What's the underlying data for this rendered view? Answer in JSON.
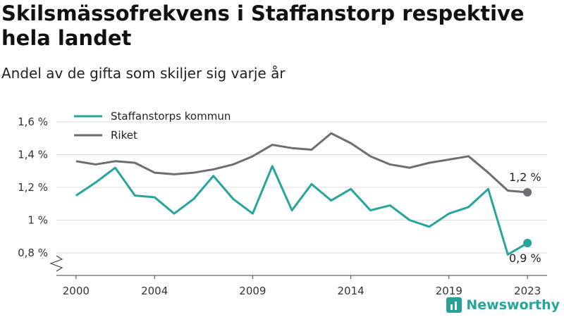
{
  "title": "Skilsmässofrekvens i Staffanstorp respektive hela landet",
  "subtitle": "Andel av de gifta som skiljer sig varje år",
  "brand": "Newsworthy",
  "colors": {
    "staffanstorp": "#26a69a",
    "riket": "#6d6d73",
    "grid": "#dddddd",
    "axis": "#444444"
  },
  "chart_data": {
    "type": "line",
    "title": "Skilsmässofrekvens i Staffanstorp respektive hela landet",
    "subtitle": "Andel av de gifta som skiljer sig varje år",
    "x_ticks": [
      2000,
      2004,
      2009,
      2014,
      2019,
      2023
    ],
    "y_ticks": [
      {
        "value": 0.8,
        "label": "0,8 %"
      },
      {
        "value": 1.0,
        "label": "1 %"
      },
      {
        "value": 1.2,
        "label": "1,2 %"
      },
      {
        "value": 1.4,
        "label": "1,4 %"
      },
      {
        "value": 1.6,
        "label": "1,6 %"
      }
    ],
    "ylim": [
      0.8,
      1.6
    ],
    "grid": true,
    "legend_position": "top-left",
    "x": [
      2000,
      2001,
      2002,
      2003,
      2004,
      2005,
      2006,
      2007,
      2008,
      2009,
      2010,
      2011,
      2012,
      2013,
      2014,
      2015,
      2016,
      2017,
      2018,
      2019,
      2020,
      2021,
      2022,
      2023
    ],
    "series": [
      {
        "name": "Staffanstorps kommun",
        "color": "#26a69a",
        "end_label": "0,9 %",
        "values": [
          1.15,
          1.23,
          1.32,
          1.15,
          1.14,
          1.04,
          1.13,
          1.27,
          1.13,
          1.04,
          1.33,
          1.06,
          1.22,
          1.12,
          1.19,
          1.06,
          1.09,
          1.0,
          0.96,
          1.04,
          1.08,
          1.19,
          0.79,
          0.86
        ]
      },
      {
        "name": "Riket",
        "color": "#6d6d73",
        "end_label": "1,2 %",
        "values": [
          1.36,
          1.34,
          1.36,
          1.35,
          1.29,
          1.28,
          1.29,
          1.31,
          1.34,
          1.39,
          1.46,
          1.44,
          1.43,
          1.53,
          1.47,
          1.39,
          1.34,
          1.32,
          1.35,
          1.37,
          1.39,
          1.29,
          1.18,
          1.17
        ]
      }
    ]
  }
}
